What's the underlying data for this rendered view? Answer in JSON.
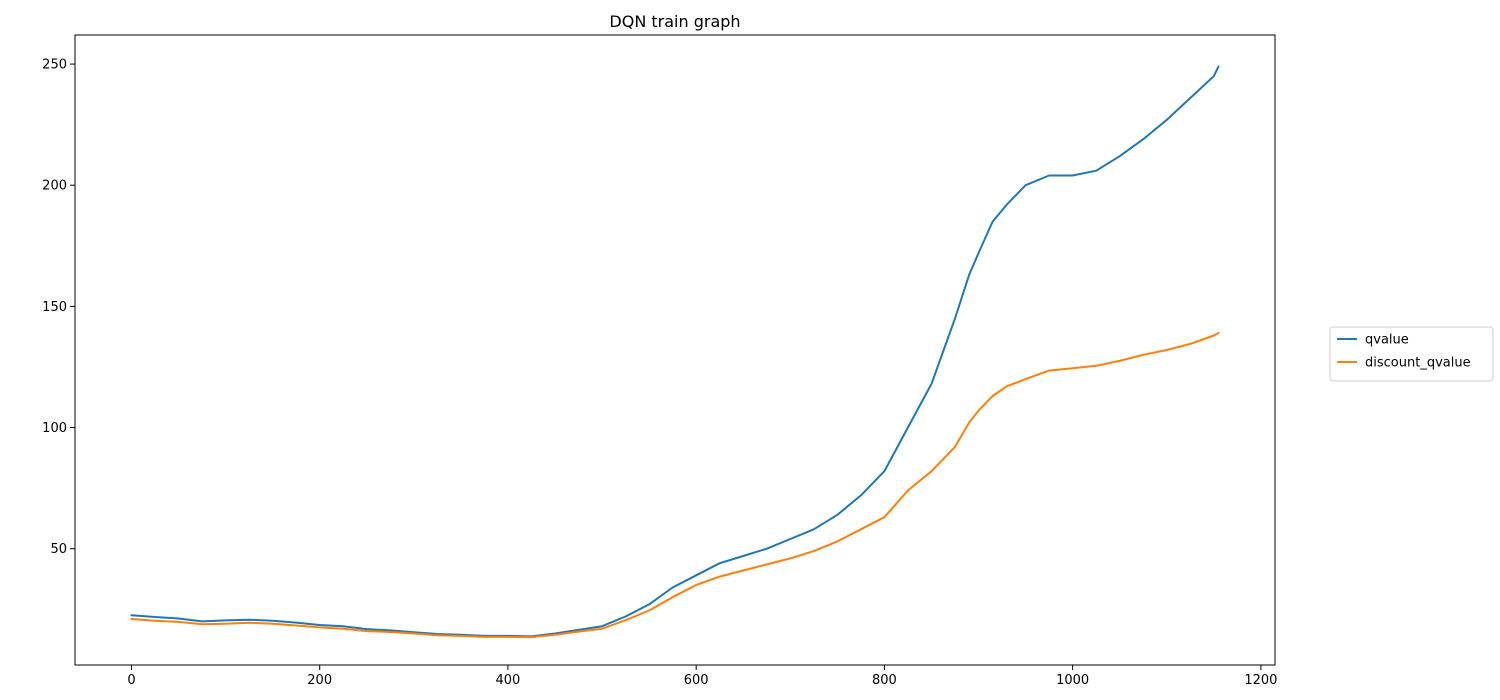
{
  "chart_data": {
    "type": "line",
    "title": "DQN train graph",
    "xlabel": "",
    "ylabel": "",
    "xlim": [
      -60,
      1215
    ],
    "ylim": [
      2,
      262
    ],
    "x_ticks": [
      0,
      200,
      400,
      600,
      800,
      1000,
      1200
    ],
    "y_ticks": [
      50,
      100,
      150,
      200,
      250
    ],
    "grid": false,
    "legend_position": "right",
    "series": [
      {
        "name": "qvalue",
        "color": "#1f77b4",
        "x": [
          0,
          25,
          50,
          75,
          100,
          125,
          150,
          175,
          200,
          225,
          250,
          275,
          300,
          325,
          350,
          375,
          400,
          425,
          450,
          475,
          500,
          525,
          550,
          575,
          600,
          625,
          650,
          675,
          700,
          725,
          750,
          775,
          800,
          825,
          850,
          875,
          890,
          900,
          915,
          930,
          950,
          975,
          1000,
          1025,
          1050,
          1075,
          1100,
          1125,
          1150,
          1155
        ],
        "values": [
          22.5,
          21.8,
          21.2,
          20.0,
          20.4,
          20.7,
          20.3,
          19.5,
          18.5,
          18.0,
          16.8,
          16.3,
          15.5,
          14.8,
          14.5,
          14.0,
          14.0,
          13.8,
          15.0,
          16.5,
          18.0,
          22.0,
          27.0,
          34.0,
          39.0,
          44.0,
          47.0,
          50.0,
          54.0,
          58.0,
          64.0,
          72.0,
          82.0,
          100.0,
          118.0,
          145.0,
          163.0,
          172.0,
          185.0,
          192.0,
          200.0,
          204.0,
          204.0,
          206.0,
          212.0,
          219.0,
          227.0,
          236.0,
          245.0,
          249.0
        ]
      },
      {
        "name": "discount_qvalue",
        "color": "#ff7f0e",
        "x": [
          0,
          25,
          50,
          75,
          100,
          125,
          150,
          175,
          200,
          225,
          250,
          275,
          300,
          325,
          350,
          375,
          400,
          425,
          450,
          475,
          500,
          525,
          550,
          575,
          600,
          625,
          650,
          675,
          700,
          725,
          750,
          775,
          800,
          825,
          850,
          875,
          890,
          900,
          915,
          930,
          950,
          975,
          1000,
          1025,
          1050,
          1075,
          1100,
          1125,
          1150,
          1155
        ],
        "values": [
          21.0,
          20.3,
          19.8,
          18.8,
          19.0,
          19.4,
          19.0,
          18.3,
          17.5,
          17.0,
          16.0,
          15.6,
          15.0,
          14.3,
          14.0,
          13.6,
          13.6,
          13.5,
          14.5,
          15.8,
          17.0,
          20.5,
          24.5,
          30.0,
          35.0,
          38.5,
          41.0,
          43.5,
          46.0,
          49.0,
          53.0,
          58.0,
          63.0,
          74.0,
          82.0,
          92.0,
          102.0,
          107.0,
          113.0,
          117.0,
          120.0,
          123.5,
          124.5,
          125.5,
          127.5,
          130.0,
          132.0,
          134.5,
          138.0,
          139.0
        ]
      }
    ]
  }
}
